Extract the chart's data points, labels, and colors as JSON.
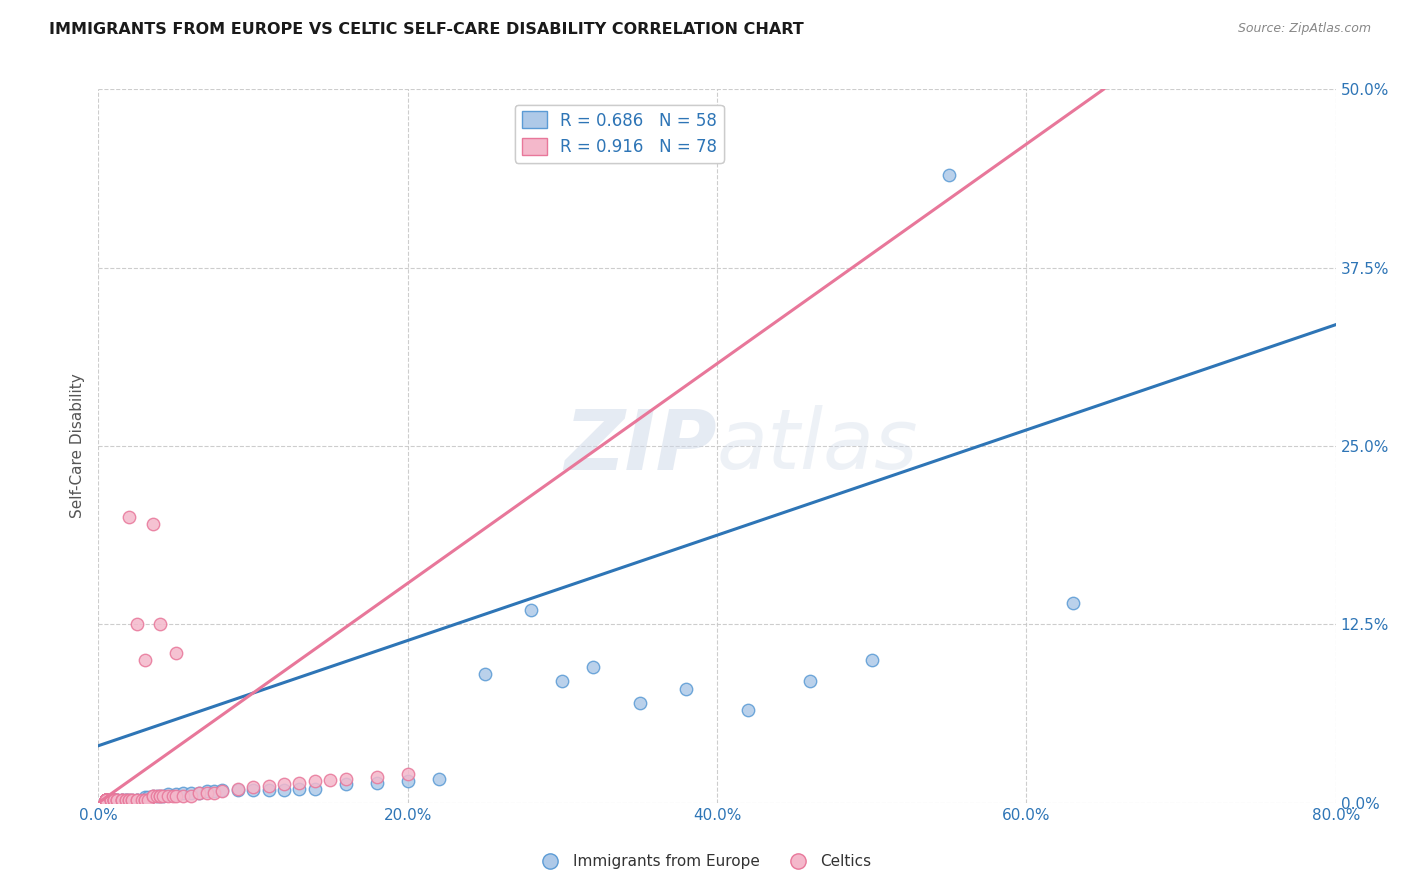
{
  "title": "IMMIGRANTS FROM EUROPE VS CELTIC SELF-CARE DISABILITY CORRELATION CHART",
  "source": "Source: ZipAtlas.com",
  "xlim": [
    0.0,
    0.8
  ],
  "ylim": [
    0.0,
    0.5
  ],
  "blue_R": 0.686,
  "blue_N": 58,
  "pink_R": 0.916,
  "pink_N": 78,
  "blue_color": "#aec9e8",
  "pink_color": "#f4b8cb",
  "blue_edge_color": "#5b9bd5",
  "pink_edge_color": "#e8779a",
  "blue_line_color": "#2e75b6",
  "pink_line_color": "#e8779a",
  "legend_text_color": "#2e75b6",
  "watermark_color": "#cdd8e8",
  "background_color": "#ffffff",
  "grid_color": "#c8c8c8",
  "blue_line_x": [
    0.0,
    0.8
  ],
  "blue_line_y": [
    0.04,
    0.335
  ],
  "pink_line_x": [
    0.0,
    0.65
  ],
  "pink_line_y": [
    0.0,
    0.5
  ],
  "blue_scatter_x": [
    0.005,
    0.005,
    0.005,
    0.005,
    0.005,
    0.005,
    0.005,
    0.008,
    0.008,
    0.01,
    0.01,
    0.01,
    0.012,
    0.012,
    0.015,
    0.015,
    0.018,
    0.018,
    0.02,
    0.022,
    0.025,
    0.025,
    0.028,
    0.03,
    0.032,
    0.035,
    0.038,
    0.04,
    0.042,
    0.045,
    0.05,
    0.055,
    0.06,
    0.065,
    0.07,
    0.075,
    0.08,
    0.09,
    0.1,
    0.11,
    0.12,
    0.13,
    0.14,
    0.16,
    0.18,
    0.2,
    0.22,
    0.25,
    0.28,
    0.3,
    0.32,
    0.35,
    0.38,
    0.42,
    0.46,
    0.5,
    0.55,
    0.63
  ],
  "blue_scatter_y": [
    0.002,
    0.002,
    0.002,
    0.002,
    0.002,
    0.002,
    0.002,
    0.002,
    0.002,
    0.002,
    0.002,
    0.002,
    0.002,
    0.002,
    0.002,
    0.002,
    0.002,
    0.002,
    0.002,
    0.002,
    0.002,
    0.002,
    0.002,
    0.004,
    0.004,
    0.005,
    0.005,
    0.005,
    0.005,
    0.006,
    0.006,
    0.007,
    0.007,
    0.007,
    0.008,
    0.008,
    0.009,
    0.009,
    0.009,
    0.009,
    0.009,
    0.01,
    0.01,
    0.013,
    0.014,
    0.015,
    0.017,
    0.09,
    0.135,
    0.085,
    0.095,
    0.07,
    0.08,
    0.065,
    0.085,
    0.1,
    0.44,
    0.14
  ],
  "pink_scatter_x": [
    0.005,
    0.005,
    0.005,
    0.005,
    0.005,
    0.005,
    0.005,
    0.005,
    0.005,
    0.005,
    0.005,
    0.005,
    0.005,
    0.005,
    0.005,
    0.005,
    0.005,
    0.005,
    0.005,
    0.005,
    0.008,
    0.008,
    0.008,
    0.008,
    0.01,
    0.01,
    0.01,
    0.01,
    0.01,
    0.012,
    0.012,
    0.012,
    0.015,
    0.015,
    0.015,
    0.018,
    0.018,
    0.02,
    0.02,
    0.022,
    0.022,
    0.025,
    0.025,
    0.028,
    0.03,
    0.03,
    0.032,
    0.035,
    0.035,
    0.038,
    0.04,
    0.04,
    0.042,
    0.045,
    0.048,
    0.05,
    0.055,
    0.06,
    0.065,
    0.07,
    0.075,
    0.08,
    0.09,
    0.1,
    0.11,
    0.12,
    0.13,
    0.14,
    0.15,
    0.16,
    0.18,
    0.2,
    0.035,
    0.04,
    0.05,
    0.025,
    0.03,
    0.02
  ],
  "pink_scatter_y": [
    0.002,
    0.002,
    0.002,
    0.002,
    0.002,
    0.002,
    0.002,
    0.002,
    0.002,
    0.002,
    0.002,
    0.002,
    0.002,
    0.002,
    0.002,
    0.002,
    0.002,
    0.002,
    0.002,
    0.002,
    0.002,
    0.002,
    0.002,
    0.002,
    0.002,
    0.002,
    0.002,
    0.002,
    0.002,
    0.002,
    0.002,
    0.002,
    0.002,
    0.002,
    0.002,
    0.002,
    0.002,
    0.002,
    0.002,
    0.002,
    0.002,
    0.002,
    0.002,
    0.002,
    0.002,
    0.002,
    0.002,
    0.005,
    0.005,
    0.005,
    0.005,
    0.005,
    0.005,
    0.005,
    0.005,
    0.005,
    0.005,
    0.005,
    0.007,
    0.007,
    0.007,
    0.008,
    0.01,
    0.011,
    0.012,
    0.013,
    0.014,
    0.015,
    0.016,
    0.017,
    0.018,
    0.02,
    0.195,
    0.125,
    0.105,
    0.125,
    0.1,
    0.2
  ]
}
